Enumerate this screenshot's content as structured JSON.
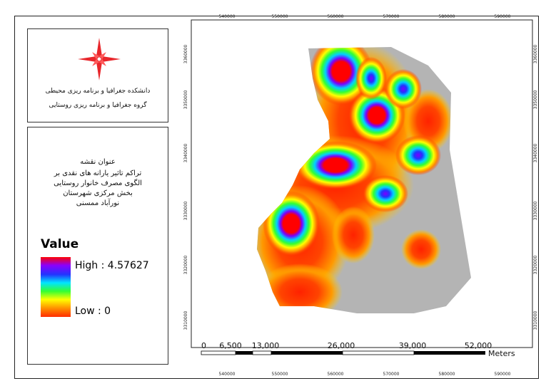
{
  "institution": {
    "line1": "دانشکده جغرافیا و برنامه ریزی محیطی",
    "line2": "گروه جغرافیا و برنامه ریزی روستایی"
  },
  "north_arrow": {
    "icon": "compass-rose-icon",
    "color": "#e8262b"
  },
  "map_title": {
    "heading": "عنوان نقشه",
    "lines": [
      "تراکم تاثیر یارانه های نقدی بر",
      "الگوی مصرف خانوار روستایی",
      "بخش مرکزی شهرستان",
      "نورآباد ممسنی"
    ]
  },
  "legend": {
    "heading": "Value",
    "high_label": "High : 4.57627",
    "low_label": "Low : 0",
    "ramp_colors": [
      "#ff0000",
      "#8a00ff",
      "#2233ff",
      "#00e5ff",
      "#33ff33",
      "#ffff00",
      "#ff8c00",
      "#ff2d00"
    ]
  },
  "grid": {
    "x_ticks": [
      "540000",
      "550000",
      "560000",
      "570000",
      "580000",
      "590000"
    ],
    "y_ticks": [
      "3360000",
      "3350000",
      "3340000",
      "3330000",
      "3320000",
      "3310000"
    ]
  },
  "scale_bar": {
    "labels": [
      "0",
      "6,500",
      "13,000",
      "26,000",
      "39,000",
      "52,000"
    ],
    "unit": "Meters"
  }
}
